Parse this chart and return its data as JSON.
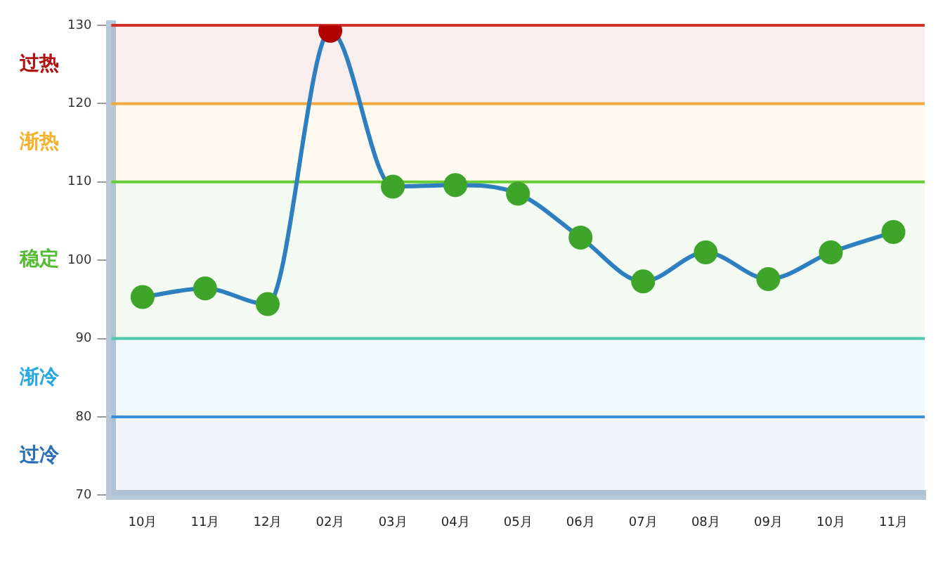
{
  "chart_data": {
    "type": "line",
    "categories": [
      "10月",
      "11月",
      "12月",
      "02月",
      "03月",
      "04月",
      "05月",
      "06月",
      "07月",
      "08月",
      "09月",
      "10月",
      "11月"
    ],
    "series": [
      {
        "color": "#2e7fc0",
        "colors": [
          "#3fa52a",
          "#3fa52a",
          "#3fa52a",
          "#b00000",
          "#3fa52a",
          "#3fa52a",
          "#3fa52a",
          "#3fa52a",
          "#3fa52a",
          "#3fa52a",
          "#3fa52a",
          "#3fa52a",
          "#3fa52a"
        ],
        "values": [
          95.3,
          96.4,
          94.4,
          129.3,
          109.4,
          109.6,
          108.5,
          102.9,
          97.3,
          101.0,
          97.6,
          101.0,
          103.6
        ]
      }
    ],
    "ylim": [
      70,
      130
    ],
    "yticks": [
      70,
      80,
      90,
      100,
      110,
      120,
      130
    ],
    "ref_lines": [
      {
        "axis": "y",
        "value": 130,
        "color": "#d0312d"
      },
      {
        "axis": "y",
        "value": 120,
        "color": "#f2a93b"
      },
      {
        "axis": "y",
        "value": 110,
        "color": "#66cc33"
      },
      {
        "axis": "y",
        "value": 90,
        "color": "#4fc9b0"
      },
      {
        "axis": "y",
        "value": 80,
        "color": "#3a8fd8"
      }
    ],
    "bands": [
      {
        "axis": "y",
        "from": 120,
        "to": 130,
        "label": "过热",
        "color": "#b01010"
      },
      {
        "axis": "y",
        "from": 110,
        "to": 120,
        "label": "渐热",
        "color": "#f2b230"
      },
      {
        "axis": "y",
        "from": 90,
        "to": 110,
        "label": "稳定",
        "color": "#55bb33"
      },
      {
        "axis": "y",
        "from": 80,
        "to": 90,
        "label": "渐冷",
        "color": "#29a8e0"
      },
      {
        "axis": "y",
        "from": 70,
        "to": 80,
        "label": "过冷",
        "color": "#2a70b8"
      }
    ],
    "marker": "circle",
    "grid": false,
    "legend": false
  }
}
